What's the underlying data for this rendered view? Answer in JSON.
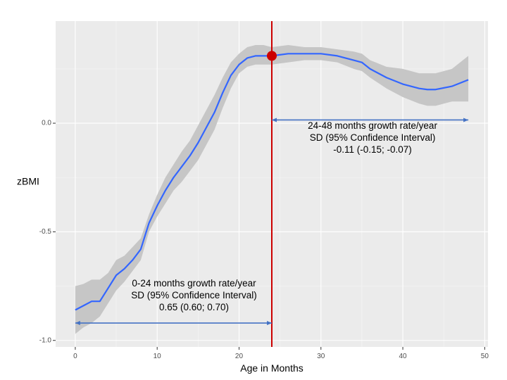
{
  "chart_data": {
    "type": "line",
    "xlabel": "Age in Months",
    "ylabel": "zBMI",
    "xlim": [
      -2.4,
      50.4
    ],
    "ylim": [
      -1.03,
      0.47
    ],
    "x_ticks": [
      0,
      10,
      20,
      30,
      40,
      50
    ],
    "x_tick_labels": [
      "0",
      "10",
      "20",
      "30",
      "40",
      "50"
    ],
    "y_ticks": [
      -1.0,
      -0.5,
      0.0
    ],
    "y_tick_labels": [
      "-1.0",
      "-0.5",
      "0.0"
    ],
    "grid": true,
    "series": [
      {
        "color": "#3366ff",
        "x": [
          0,
          1,
          2,
          3,
          4,
          5,
          6,
          7,
          8,
          9,
          10,
          11,
          12,
          13,
          14,
          15,
          16,
          17,
          18,
          19,
          20,
          21,
          22,
          23,
          24,
          26,
          28,
          30,
          32,
          34,
          35,
          36,
          38,
          40,
          42,
          43,
          44,
          46,
          48
        ],
        "y": [
          -0.86,
          -0.84,
          -0.82,
          -0.82,
          -0.76,
          -0.7,
          -0.67,
          -0.63,
          -0.58,
          -0.46,
          -0.38,
          -0.31,
          -0.25,
          -0.2,
          -0.15,
          -0.09,
          -0.02,
          0.05,
          0.14,
          0.22,
          0.27,
          0.3,
          0.31,
          0.31,
          0.31,
          0.32,
          0.32,
          0.32,
          0.31,
          0.29,
          0.28,
          0.25,
          0.21,
          0.18,
          0.16,
          0.155,
          0.155,
          0.17,
          0.2
        ],
        "ci_lower": [
          -0.97,
          -0.94,
          -0.92,
          -0.89,
          -0.83,
          -0.77,
          -0.73,
          -0.68,
          -0.63,
          -0.5,
          -0.43,
          -0.37,
          -0.31,
          -0.27,
          -0.22,
          -0.17,
          -0.1,
          -0.03,
          0.07,
          0.16,
          0.23,
          0.26,
          0.27,
          0.27,
          0.27,
          0.28,
          0.29,
          0.29,
          0.28,
          0.25,
          0.24,
          0.21,
          0.16,
          0.12,
          0.09,
          0.08,
          0.08,
          0.1,
          0.1
        ],
        "ci_upper": [
          -0.75,
          -0.74,
          -0.72,
          -0.72,
          -0.69,
          -0.63,
          -0.61,
          -0.57,
          -0.53,
          -0.42,
          -0.33,
          -0.25,
          -0.19,
          -0.13,
          -0.08,
          -0.01,
          0.06,
          0.13,
          0.21,
          0.28,
          0.32,
          0.35,
          0.36,
          0.36,
          0.35,
          0.36,
          0.35,
          0.35,
          0.34,
          0.33,
          0.32,
          0.29,
          0.26,
          0.25,
          0.23,
          0.23,
          0.23,
          0.25,
          0.31
        ]
      }
    ],
    "vline": {
      "x": 24,
      "color": "#cc0000"
    },
    "marker": {
      "x": 24,
      "y": 0.31,
      "color": "#cc0000"
    },
    "arrows": [
      {
        "x_from": 0,
        "x_to": 24,
        "y": -0.92,
        "color": "#4472c4"
      },
      {
        "x_from": 24,
        "x_to": 48,
        "y": 0.015,
        "color": "#4472c4"
      }
    ],
    "annotations": [
      {
        "lines": [
          "0-24 months growth rate/year",
          "SD (95% Confidence Interval)",
          "0.65 (0.60; 0.70)"
        ],
        "x": 14.5,
        "y": -0.752
      },
      {
        "lines": [
          "24-48 months growth rate/year",
          "SD (95% Confidence Interval)",
          "-0.11 (-0.15; -0.07)"
        ],
        "x": 36.3,
        "y": -0.025
      }
    ]
  }
}
